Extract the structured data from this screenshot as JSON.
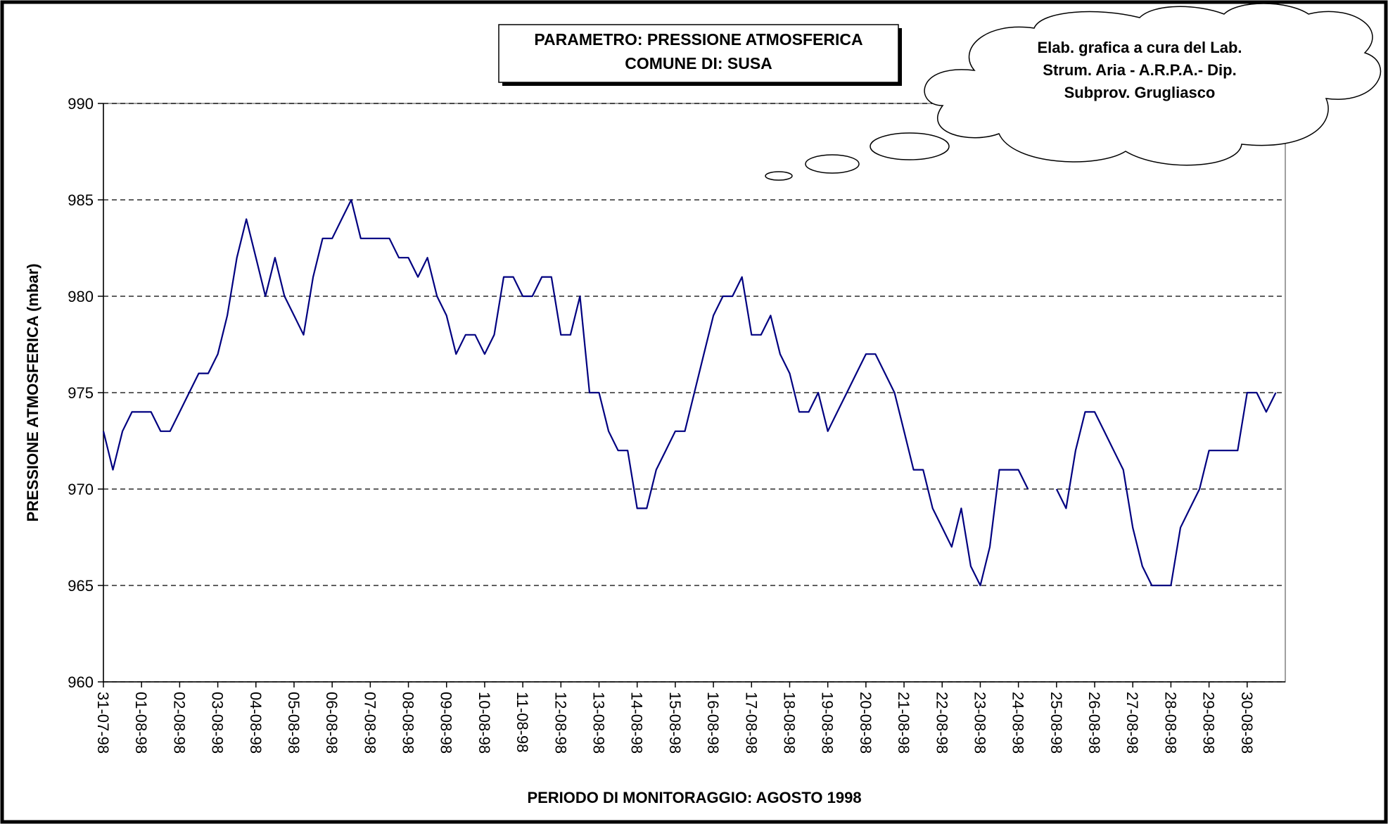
{
  "chart_data": {
    "type": "line",
    "title": [
      "PARAMETRO: PRESSIONE ATMOSFERICA",
      "COMUNE DI: SUSA"
    ],
    "annotation": [
      "Elab. grafica a cura del Lab.",
      "Strum. Aria - A.R.P.A.- Dip.",
      "Subprov. Grugliasco"
    ],
    "y_label": "PRESSIONE ATMOSFERICA (mbar)",
    "x_label": "PERIODO DI MONITORAGGIO: AGOSTO 1998",
    "categories": [
      "31-07-98",
      "01-08-98",
      "02-08-98",
      "03-08-98",
      "04-08-98",
      "05-08-98",
      "06-08-98",
      "07-08-98",
      "08-08-98",
      "09-08-98",
      "10-08-98",
      "11-08-98",
      "12-08-98",
      "13-08-98",
      "14-08-98",
      "15-08-98",
      "16-08-98",
      "17-08-98",
      "18-08-98",
      "19-08-98",
      "20-08-98",
      "21-08-98",
      "22-08-98",
      "23-08-98",
      "24-08-98",
      "25-08-98",
      "26-08-98",
      "27-08-98",
      "28-08-98",
      "29-08-98",
      "30-08-98"
    ],
    "values": [
      [
        973,
        971,
        973,
        974
      ],
      [
        974,
        974,
        973,
        973
      ],
      [
        974,
        975,
        976,
        976
      ],
      [
        977,
        979,
        982,
        984
      ],
      [
        982,
        980,
        982,
        980
      ],
      [
        979,
        978,
        981,
        983
      ],
      [
        983,
        984,
        985,
        983
      ],
      [
        983,
        983,
        983,
        982
      ],
      [
        982,
        981,
        982,
        980
      ],
      [
        979,
        977,
        978,
        978
      ],
      [
        977,
        978,
        981,
        981
      ],
      [
        980,
        980,
        981,
        981
      ],
      [
        978,
        978,
        980,
        975
      ],
      [
        975,
        973,
        972,
        972
      ],
      [
        969,
        969,
        971,
        972
      ],
      [
        973,
        973,
        975,
        977
      ],
      [
        979,
        980,
        980,
        981
      ],
      [
        978,
        978,
        979,
        977
      ],
      [
        976,
        974,
        974,
        975
      ],
      [
        973,
        974,
        975,
        976
      ],
      [
        977,
        977,
        976,
        975
      ],
      [
        973,
        971,
        971,
        969
      ],
      [
        968,
        967,
        969,
        966
      ],
      [
        965,
        967,
        971,
        971
      ],
      [
        971,
        970,
        null,
        null
      ],
      [
        970,
        969,
        972,
        974
      ],
      [
        974,
        973,
        972,
        971
      ],
      [
        968,
        966,
        965,
        965
      ],
      [
        965,
        968,
        969,
        970
      ],
      [
        972,
        972,
        972,
        972
      ],
      [
        975,
        975,
        974,
        975
      ]
    ],
    "color": "#000080",
    "ylim": [
      960,
      990
    ],
    "yticks": [
      960,
      965,
      970,
      975,
      980,
      985,
      990
    ],
    "grid": true
  }
}
